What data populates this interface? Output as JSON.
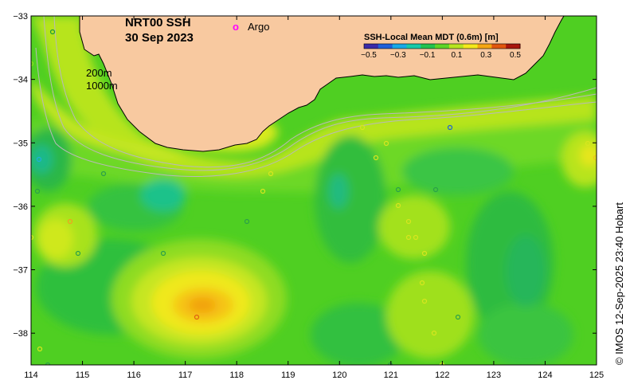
{
  "title": {
    "line1": "NRT00 SSH",
    "line2": "30 Sep 2023"
  },
  "legend": {
    "argo_marker": "o",
    "argo_label": "Argo",
    "argo_color": "#ff00ff"
  },
  "isobaths": {
    "shallow": "200m",
    "deep": "1000m"
  },
  "colorbar": {
    "title": "SSH-Local Mean MDT (0.6m) [m]",
    "ticks": [
      "−0.5",
      "−0.3",
      "−0.1",
      "0.1",
      "0.3",
      "0.5"
    ],
    "colors": [
      "#3a2aa8",
      "#1f5fd8",
      "#19a9e6",
      "#18c9a8",
      "#22c24e",
      "#5fd426",
      "#b7e41f",
      "#f4e81c",
      "#f5a612",
      "#e0560e",
      "#a8160c"
    ]
  },
  "axes": {
    "x_ticks": [
      "114",
      "115",
      "116",
      "117",
      "118",
      "119",
      "120",
      "121",
      "122",
      "123",
      "124",
      "125"
    ],
    "y_ticks": [
      "−33",
      "−34",
      "−35",
      "−36",
      "−37",
      "−38"
    ],
    "lon_range": [
      114,
      125
    ],
    "lat_range": [
      -38.5,
      -33
    ]
  },
  "credit": "© IMOS 12-Sep-2025 23:40 Hobart",
  "colors": {
    "land": "#f8c9a0",
    "ocean_base": "#4fcf22",
    "coast": "#000000",
    "isobath": "#b9b9b9"
  }
}
